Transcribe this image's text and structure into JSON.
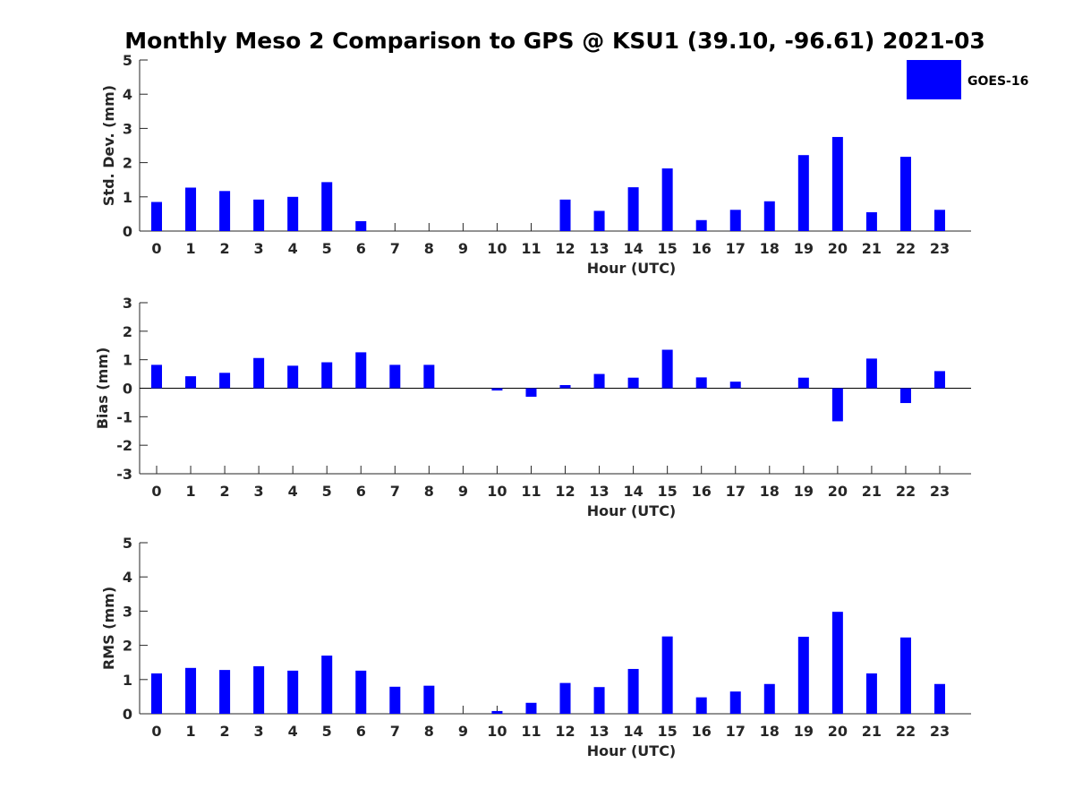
{
  "title": "Monthly Meso 2 Comparison to GPS @ KSU1 (39.10, -96.61) 2021-03",
  "legend": {
    "label": "GOES-16",
    "color": "#0000ff",
    "placement": "top-right"
  },
  "bar_color": "#0000ff",
  "chart_data": [
    {
      "type": "bar",
      "name": "std",
      "xlabel": "Hour (UTC)",
      "ylabel": "Std. Dev. (mm)",
      "ylim": [
        0,
        5
      ],
      "yticks": [
        0,
        1,
        2,
        3,
        4,
        5
      ],
      "categories": [
        0,
        1,
        2,
        3,
        4,
        5,
        6,
        7,
        8,
        9,
        10,
        11,
        12,
        13,
        14,
        15,
        16,
        17,
        18,
        19,
        20,
        21,
        22,
        23
      ],
      "values": [
        0.85,
        1.27,
        1.17,
        0.92,
        1.0,
        1.43,
        0.29,
        0,
        0,
        0,
        0,
        0,
        0.92,
        0.59,
        1.28,
        1.83,
        0.32,
        0.62,
        0.87,
        2.22,
        2.75,
        0.55,
        2.17,
        0.62
      ],
      "series": [
        {
          "name": "GOES-16"
        }
      ]
    },
    {
      "type": "bar",
      "name": "bias",
      "xlabel": "Hour (UTC)",
      "ylabel": "Bias (mm)",
      "ylim": [
        -3,
        3
      ],
      "yticks": [
        -3,
        -2,
        -1,
        0,
        1,
        2,
        3
      ],
      "categories": [
        0,
        1,
        2,
        3,
        4,
        5,
        6,
        7,
        8,
        9,
        10,
        11,
        12,
        13,
        14,
        15,
        16,
        17,
        18,
        19,
        20,
        21,
        22,
        23
      ],
      "values": [
        0.82,
        0.42,
        0.54,
        1.06,
        0.79,
        0.91,
        1.26,
        0.82,
        0.82,
        0,
        -0.08,
        -0.3,
        0.11,
        0.5,
        0.37,
        1.35,
        0.38,
        0.23,
        0,
        0.37,
        -1.16,
        1.04,
        -0.52,
        0.6
      ],
      "series": [
        {
          "name": "GOES-16"
        }
      ]
    },
    {
      "type": "bar",
      "name": "rms",
      "xlabel": "Hour (UTC)",
      "ylabel": "RMS (mm)",
      "ylim": [
        0,
        5
      ],
      "yticks": [
        0,
        1,
        2,
        3,
        4,
        5
      ],
      "categories": [
        0,
        1,
        2,
        3,
        4,
        5,
        6,
        7,
        8,
        9,
        10,
        11,
        12,
        13,
        14,
        15,
        16,
        17,
        18,
        19,
        20,
        21,
        22,
        23
      ],
      "values": [
        1.18,
        1.34,
        1.28,
        1.39,
        1.26,
        1.7,
        1.26,
        0.79,
        0.82,
        0,
        0.08,
        0.32,
        0.9,
        0.78,
        1.31,
        2.26,
        0.48,
        0.65,
        0.87,
        2.25,
        2.98,
        1.18,
        2.23,
        0.87
      ],
      "series": [
        {
          "name": "GOES-16"
        }
      ]
    }
  ]
}
